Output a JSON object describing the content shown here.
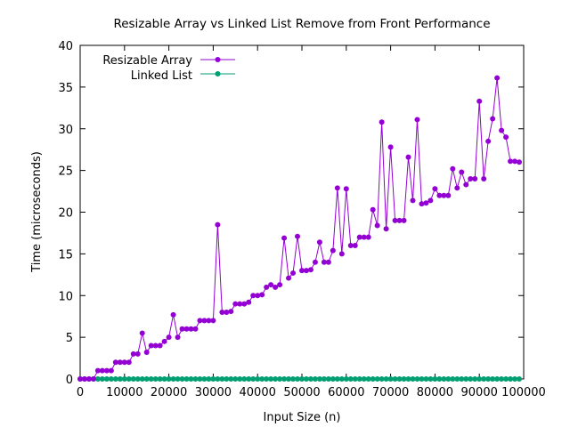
{
  "chart_data": {
    "type": "line",
    "title": "Resizable Array vs Linked List Remove from Front Performance",
    "xlabel": "Input Size (n)",
    "ylabel": "Time (microseconds)",
    "xlim": [
      0,
      100000
    ],
    "ylim": [
      0,
      40
    ],
    "x_ticks": [
      0,
      10000,
      20000,
      30000,
      40000,
      50000,
      60000,
      70000,
      80000,
      90000,
      100000
    ],
    "x_tick_labels": [
      "0",
      "10000",
      "20000",
      "30000",
      "40000",
      "50000",
      "60000",
      "70000",
      "80000",
      "90000",
      "100000"
    ],
    "y_ticks": [
      0,
      5,
      10,
      15,
      20,
      25,
      30,
      35,
      40
    ],
    "y_tick_labels": [
      "0",
      "5",
      "10",
      "15",
      "20",
      "25",
      "30",
      "35",
      "40"
    ],
    "grid": false,
    "legend_position": "top-left",
    "x": [
      0,
      1000,
      2000,
      3000,
      4000,
      5000,
      6000,
      7000,
      8000,
      9000,
      10000,
      11000,
      12000,
      13000,
      14000,
      15000,
      16000,
      17000,
      18000,
      19000,
      20000,
      21000,
      22000,
      23000,
      24000,
      25000,
      26000,
      27000,
      28000,
      29000,
      30000,
      31000,
      32000,
      33000,
      34000,
      35000,
      36000,
      37000,
      38000,
      39000,
      40000,
      41000,
      42000,
      43000,
      44000,
      45000,
      46000,
      47000,
      48000,
      49000,
      50000,
      51000,
      52000,
      53000,
      54000,
      55000,
      56000,
      57000,
      58000,
      59000,
      60000,
      61000,
      62000,
      63000,
      64000,
      65000,
      66000,
      67000,
      68000,
      69000,
      70000,
      71000,
      72000,
      73000,
      74000,
      75000,
      76000,
      77000,
      78000,
      79000,
      80000,
      81000,
      82000,
      83000,
      84000,
      85000,
      86000,
      87000,
      88000,
      89000,
      90000,
      91000,
      92000,
      93000,
      94000,
      95000,
      96000,
      97000,
      98000,
      99000
    ],
    "series": [
      {
        "name": "Resizable Array",
        "color": "#9400d3",
        "values": [
          0,
          0,
          0,
          0,
          1,
          1,
          1,
          1,
          2,
          2,
          2,
          2,
          3,
          3,
          5.5,
          3.2,
          4,
          4,
          4,
          4.5,
          5,
          7.7,
          5,
          6,
          6,
          6,
          6,
          7,
          7,
          7,
          7,
          18.5,
          8,
          8,
          8.1,
          9,
          9,
          9,
          9.2,
          10,
          10,
          10.1,
          11,
          11.3,
          11,
          11.3,
          16.9,
          12.1,
          12.7,
          17.1,
          13,
          13,
          13.1,
          14,
          16.4,
          14,
          14,
          15.4,
          22.9,
          15,
          22.8,
          16,
          16,
          17,
          17,
          17,
          20.3,
          18.4,
          30.8,
          18,
          27.8,
          19,
          19,
          19,
          26.6,
          21.4,
          31.1,
          21,
          21.1,
          21.4,
          22.8,
          22,
          22,
          22,
          25.2,
          22.9,
          24.8,
          23.3,
          24,
          24,
          33.3,
          24,
          28.5,
          31.2,
          36.1,
          29.8,
          29,
          26.1,
          26.1,
          26
        ]
      },
      {
        "name": "Linked List",
        "color": "#009e73",
        "values": [
          0,
          0,
          0,
          0,
          0,
          0,
          0,
          0,
          0,
          0,
          0,
          0,
          0,
          0,
          0,
          0,
          0,
          0,
          0,
          0,
          0,
          0,
          0,
          0,
          0,
          0,
          0,
          0,
          0,
          0,
          0,
          0,
          0,
          0,
          0,
          0,
          0,
          0,
          0,
          0,
          0,
          0,
          0,
          0,
          0,
          0,
          0,
          0,
          0,
          0,
          0,
          0,
          0,
          0,
          0,
          0,
          0,
          0,
          0,
          0,
          0,
          0,
          0,
          0,
          0,
          0,
          0,
          0,
          0,
          0,
          0,
          0,
          0,
          0,
          0,
          0,
          0,
          0,
          0,
          0,
          0,
          0,
          0,
          0,
          0,
          0,
          0,
          0,
          0,
          0,
          0,
          0,
          0,
          0,
          0,
          0,
          0,
          0,
          0,
          0
        ]
      }
    ]
  }
}
